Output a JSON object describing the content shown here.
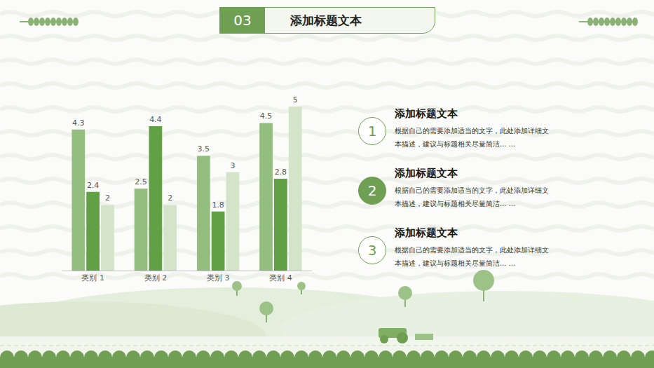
{
  "header": {
    "number": "03",
    "title": "添加标题文本"
  },
  "chart_data": {
    "type": "bar",
    "categories": [
      "类别 1",
      "类别 2",
      "类别 3",
      "类别 4"
    ],
    "series": [
      {
        "color": "#94bd80",
        "values": [
          4.3,
          2.5,
          3.5,
          4.5
        ]
      },
      {
        "color": "#62a046",
        "values": [
          2.4,
          4.4,
          1.8,
          2.8
        ]
      },
      {
        "color": "#d3e4c9",
        "values": [
          2,
          2,
          3,
          5
        ]
      }
    ],
    "ylim": [
      0,
      5
    ],
    "grid": false,
    "data_labels": true,
    "tick_labels": "x"
  },
  "items": [
    {
      "number": "1",
      "title": "添加标题文本",
      "text": "根据自己的需要添加适当的文字，此处添加详细文本描述，建议与标题相关尽量简洁... ..."
    },
    {
      "number": "2",
      "title": "添加标题文本",
      "text": "根据自己的需要添加适当的文字，此处添加详细文本描述，建议与标题相关尽量简洁... ..."
    },
    {
      "number": "3",
      "title": "添加标题文本",
      "text": "根据自己的需要添加适当的文字，此处添加详细文本描述，建议与标题相关尽量简洁... ..."
    }
  ]
}
